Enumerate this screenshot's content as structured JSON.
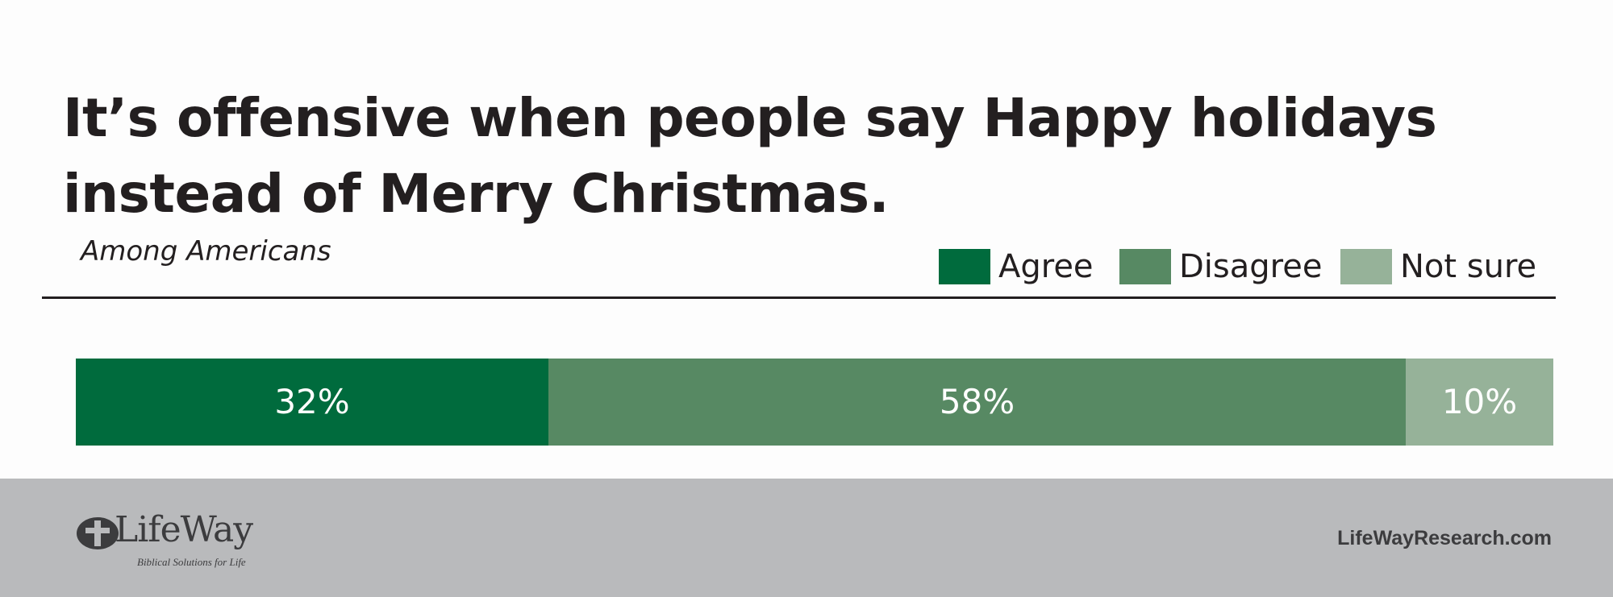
{
  "chart_data": {
    "type": "bar",
    "orientation": "horizontal-stacked",
    "title_lines": [
      "It’s offensive when people say Happy holidays",
      "instead of Merry Christmas."
    ],
    "subtitle": "Among Americans",
    "categories": [
      "Among Americans"
    ],
    "series": [
      {
        "name": "Agree",
        "values": [
          32
        ],
        "label": "32%",
        "color": "#006b3d"
      },
      {
        "name": "Disagree",
        "values": [
          58
        ],
        "label": "58%",
        "color": "#578963"
      },
      {
        "name": "Not sure",
        "values": [
          10
        ],
        "label": "10%",
        "color": "#96b299"
      }
    ],
    "xlim": [
      0,
      100
    ],
    "unit": "%",
    "legend": {
      "placement": "top-right"
    },
    "grid": false
  },
  "footer": {
    "logo_text": "LifeWay",
    "logo_tagline": "Biblical Solutions for Life",
    "site": "LifeWayResearch.com"
  }
}
